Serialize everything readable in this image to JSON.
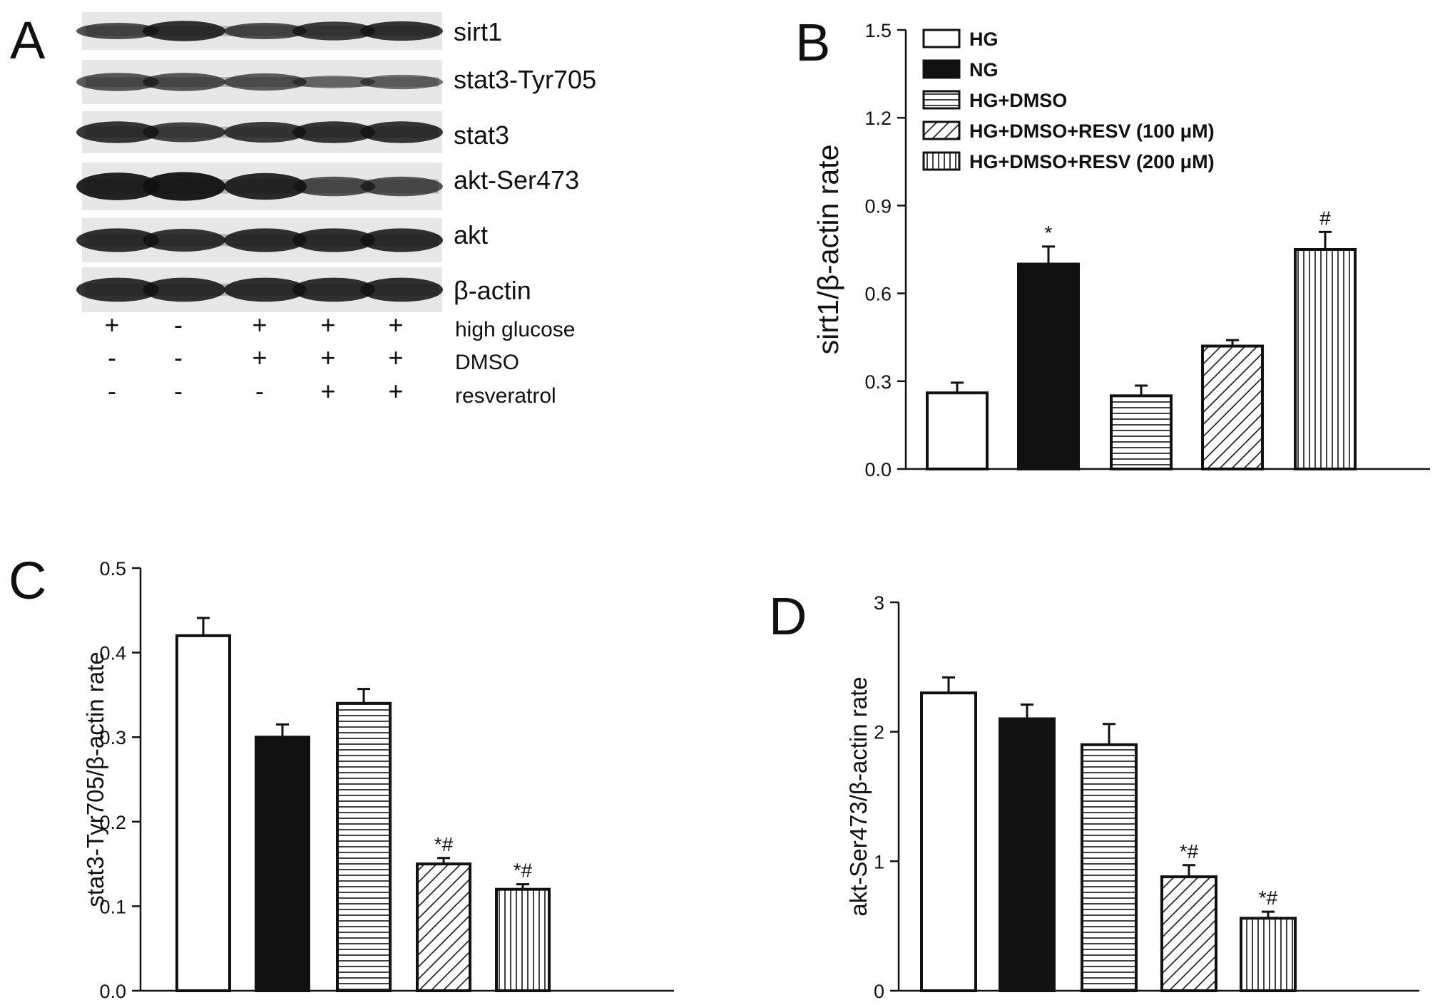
{
  "panels": {
    "A": "A",
    "B": "B",
    "C": "C",
    "D": "D"
  },
  "blot": {
    "bands": [
      "sirt1",
      "stat3-Tyr705",
      "stat3",
      "akt-Ser473",
      "akt",
      "β-actin"
    ],
    "conditions": [
      {
        "label": "high glucose",
        "signs": [
          "+",
          "-",
          "+",
          "+",
          "+"
        ]
      },
      {
        "label": "DMSO",
        "signs": [
          "-",
          "-",
          "+",
          "+",
          "+"
        ]
      },
      {
        "label": "resveratrol",
        "signs": [
          "-",
          "-",
          "-",
          "+",
          "+"
        ]
      }
    ]
  },
  "legend": {
    "items": [
      {
        "label": "HG",
        "pattern": "open"
      },
      {
        "label": "NG",
        "pattern": "solid"
      },
      {
        "label": "HG+DMSO",
        "pattern": "horizontal"
      },
      {
        "label": "HG+DMSO+RESV (100 μM)",
        "pattern": "diagonal"
      },
      {
        "label": "HG+DMSO+RESV (200 μM)",
        "pattern": "vertical"
      }
    ]
  },
  "colors": {
    "ink": "#111111",
    "open": "#ffffff"
  },
  "chart_data": [
    {
      "panel": "B",
      "type": "bar",
      "categories": [
        "HG",
        "NG",
        "HG+DMSO",
        "HG+DMSO+RESV (100 μM)",
        "HG+DMSO+RESV (200 μM)"
      ],
      "values": [
        0.26,
        0.7,
        0.25,
        0.42,
        0.75
      ],
      "errors": [
        0.035,
        0.06,
        0.035,
        0.02,
        0.06
      ],
      "annotations": [
        "",
        "*",
        "",
        "",
        "#"
      ],
      "ylabel": "sirt1/β-actin rate",
      "ylim": [
        0,
        1.5
      ],
      "yticks": [
        "0.0",
        "0.3",
        "0.6",
        "0.9",
        "1.2",
        "1.5"
      ],
      "legend": "top-left"
    },
    {
      "panel": "C",
      "type": "bar",
      "categories": [
        "HG",
        "NG",
        "HG+DMSO",
        "HG+DMSO+RESV (100 μM)",
        "HG+DMSO+RESV (200 μM)"
      ],
      "values": [
        0.42,
        0.3,
        0.34,
        0.15,
        0.12
      ],
      "errors": [
        0.021,
        0.015,
        0.017,
        0.007,
        0.006
      ],
      "annotations": [
        "",
        "",
        "",
        "*#",
        "*#"
      ],
      "ylabel": "stat3-Tyr705/β-actin rate",
      "ylim": [
        0,
        0.5
      ],
      "yticks": [
        "0.0",
        "0.1",
        "0.2",
        "0.3",
        "0.4",
        "0.5"
      ]
    },
    {
      "panel": "D",
      "type": "bar",
      "categories": [
        "HG",
        "NG",
        "HG+DMSO",
        "HG+DMSO+RESV (100 μM)",
        "HG+DMSO+RESV (200 μM)"
      ],
      "values": [
        2.3,
        2.1,
        1.9,
        0.88,
        0.56
      ],
      "errors": [
        0.12,
        0.11,
        0.16,
        0.09,
        0.05
      ],
      "annotations": [
        "",
        "",
        "",
        "*#",
        "*#"
      ],
      "ylabel": "akt-Ser473/β-actin rate",
      "ylim": [
        0,
        3
      ],
      "yticks": [
        "0",
        "1",
        "2",
        "3"
      ]
    }
  ]
}
